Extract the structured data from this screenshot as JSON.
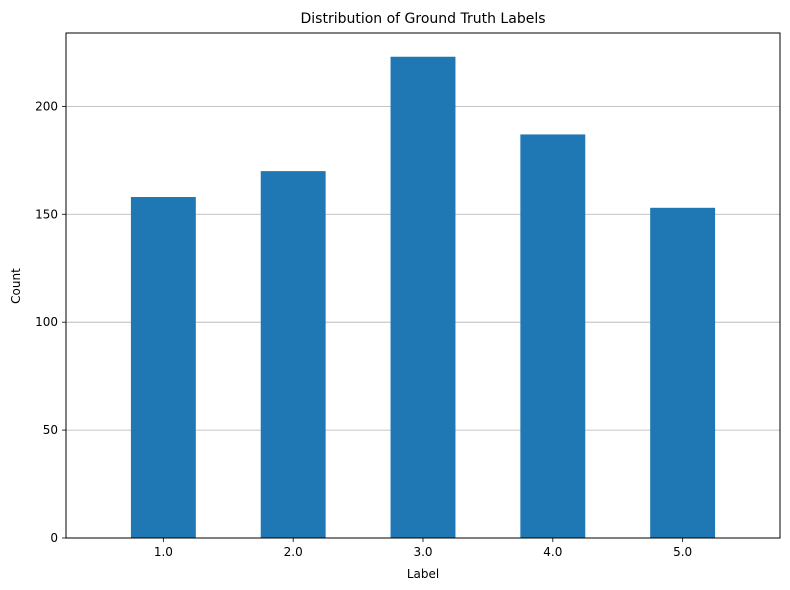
{
  "chart_data": {
    "type": "bar",
    "title": "Distribution of Ground Truth Labels",
    "xlabel": "Label",
    "ylabel": "Count",
    "categories": [
      "1.0",
      "2.0",
      "3.0",
      "4.0",
      "5.0"
    ],
    "values": [
      158,
      170,
      223,
      187,
      153
    ],
    "ylim": [
      0,
      234
    ],
    "yticks": [
      0,
      50,
      100,
      150,
      200
    ],
    "grid": "y",
    "bar_color": "#1f77b4"
  }
}
